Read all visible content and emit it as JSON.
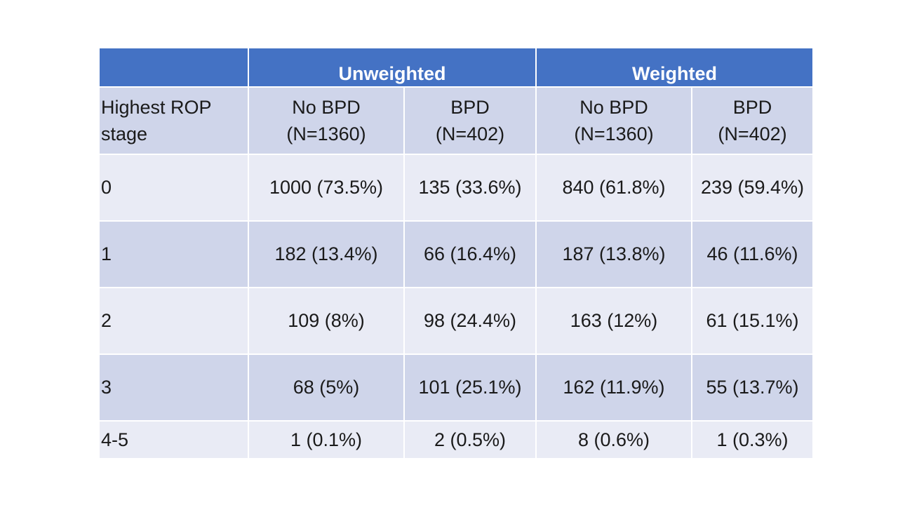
{
  "table": {
    "groups": [
      "Unweighted",
      "Weighted"
    ],
    "stub_header": [
      "Highest ROP",
      "stage"
    ],
    "column_headers": [
      {
        "label": "No BPD",
        "n": "(N=1360)"
      },
      {
        "label": "BPD",
        "n": "(N=402)"
      },
      {
        "label": "No BPD",
        "n": "(N=1360)"
      },
      {
        "label": "BPD",
        "n": "(N=402)"
      }
    ],
    "rows": [
      {
        "stage": "0",
        "cells": [
          "1000 (73.5%)",
          "135 (33.6%)",
          "840 (61.8%)",
          "239 (59.4%)"
        ]
      },
      {
        "stage": "1",
        "cells": [
          "182 (13.4%)",
          "66 (16.4%)",
          "187 (13.8%)",
          "46 (11.6%)"
        ]
      },
      {
        "stage": "2",
        "cells": [
          "109 (8%)",
          "98 (24.4%)",
          "163 (12%)",
          "61 (15.1%)"
        ]
      },
      {
        "stage": "3",
        "cells": [
          "68 (5%)",
          "101 (25.1%)",
          "162 (11.9%)",
          "55 (13.7%)"
        ]
      },
      {
        "stage": "4-5",
        "cells": [
          "1 (0.1%)",
          "2 (0.5%)",
          "8 (0.6%)",
          "1 (0.3%)"
        ]
      }
    ]
  },
  "colors": {
    "header_blue": "#4472c4",
    "band_dark": "#cfd5ea",
    "band_light": "#e9ebf5"
  }
}
